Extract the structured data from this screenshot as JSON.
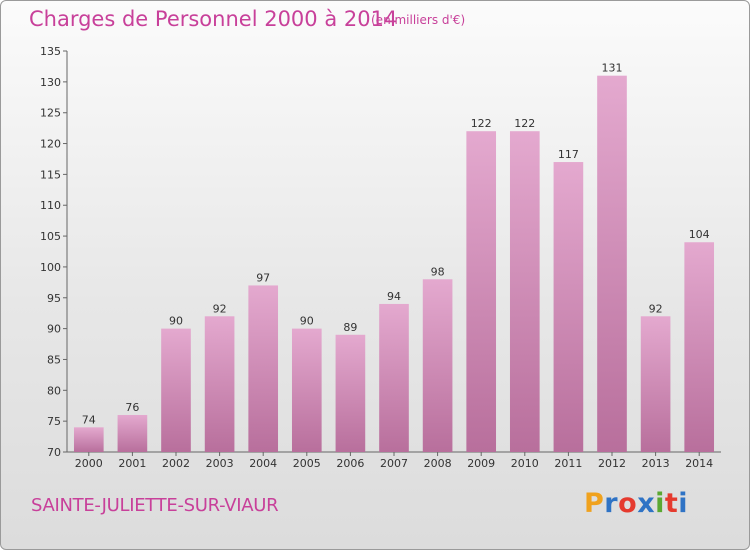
{
  "header": {
    "title": "Charges de Personnel 2000 à 2014",
    "subtitle": "(en milliers d'€)"
  },
  "footer": {
    "commune": "SAINTE-JULIETTE-SUR-VIAUR",
    "logo_letters": [
      "P",
      "r",
      "o",
      "x",
      "i",
      "t",
      "i"
    ]
  },
  "colors": {
    "bar": "#d98fbd",
    "title": "#c8409a",
    "logo": [
      "#f0a21e",
      "#2f73c5",
      "#e53a2e",
      "#2f73c5",
      "#5aa832",
      "#e53a2e",
      "#2f73c5"
    ]
  },
  "chart_data": {
    "type": "bar",
    "title": "Charges de Personnel 2000 à 2014",
    "subtitle": "(en milliers d'€)",
    "categories": [
      "2000",
      "2001",
      "2002",
      "2003",
      "2004",
      "2005",
      "2006",
      "2007",
      "2008",
      "2009",
      "2010",
      "2011",
      "2012",
      "2013",
      "2014"
    ],
    "values": [
      74,
      76,
      90,
      92,
      97,
      90,
      89,
      94,
      98,
      122,
      122,
      117,
      131,
      92,
      104
    ],
    "ylim": [
      70,
      135
    ],
    "yticks": [
      70,
      75,
      80,
      85,
      90,
      95,
      100,
      105,
      110,
      115,
      120,
      125,
      130,
      135
    ],
    "grid": false
  }
}
